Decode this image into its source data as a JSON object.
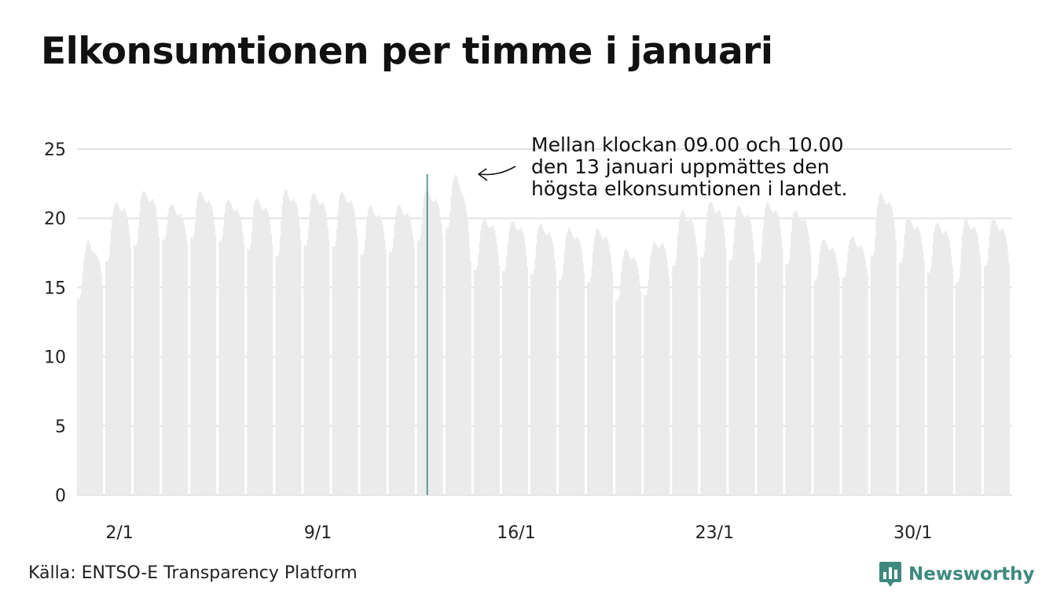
{
  "title": "Elkonsumtionen per timme i januari",
  "source": "Källa: ENTSO-E Transparency Platform",
  "brand": {
    "name": "Newsworthy",
    "icon": "bar-chart-speech-bubble-icon",
    "color": "#3e8a7e"
  },
  "annotation": {
    "lines": [
      "Mellan klockan 09.00 och 10.00",
      "den 13 januari uppmättes den",
      "högsta elkonsumtionen i landet."
    ],
    "arrow_icon": "curved-arrow-left-icon"
  },
  "chart_data": {
    "type": "bar",
    "title": "Elkonsumtionen per timme i januari",
    "xlabel": "",
    "ylabel": "",
    "ylim": [
      0,
      25
    ],
    "yticks": [
      "0",
      "5",
      "10",
      "15",
      "20",
      "25"
    ],
    "xticks": [
      {
        "day": 2,
        "label": "2/1"
      },
      {
        "day": 9,
        "label": "9/1"
      },
      {
        "day": 16,
        "label": "16/1"
      },
      {
        "day": 23,
        "label": "23/1"
      },
      {
        "day": 30,
        "label": "30/1"
      }
    ],
    "grid": true,
    "bar_color": "#ebebeb",
    "highlight_color": "#3e8a7e",
    "highlight": {
      "day": 13,
      "hour": 9,
      "value": 23.2
    },
    "series": [
      {
        "values": [
          [
            14.2,
            14.1,
            14.2,
            14.5,
            15.3,
            16.2,
            17.0,
            17.5,
            17.9,
            18.3,
            18.4,
            18.2,
            18.0,
            17.7,
            17.6,
            17.5,
            17.5,
            17.4,
            17.3,
            17.1,
            16.9,
            16.6,
            16.0,
            15.2
          ],
          [
            16.9,
            16.8,
            16.9,
            17.2,
            18.1,
            19.2,
            20.1,
            20.5,
            20.9,
            21.1,
            21.2,
            21.0,
            20.8,
            20.6,
            20.5,
            20.5,
            20.6,
            20.7,
            20.5,
            20.3,
            20.0,
            19.5,
            18.8,
            17.9
          ],
          [
            18.1,
            18.0,
            18.1,
            18.4,
            19.3,
            20.4,
            21.3,
            21.7,
            21.9,
            22.0,
            21.9,
            21.7,
            21.5,
            21.3,
            21.2,
            21.2,
            21.3,
            21.4,
            21.2,
            21.0,
            20.7,
            20.2,
            19.5,
            18.6
          ],
          [
            18.5,
            18.4,
            18.5,
            18.8,
            19.5,
            20.3,
            20.7,
            20.9,
            21.0,
            21.0,
            20.9,
            20.7,
            20.5,
            20.3,
            20.2,
            20.2,
            20.3,
            20.3,
            20.1,
            19.9,
            19.6,
            19.2,
            18.8,
            18.2
          ],
          [
            18.6,
            18.5,
            18.6,
            18.9,
            19.7,
            20.7,
            21.5,
            21.8,
            21.9,
            21.9,
            21.8,
            21.6,
            21.4,
            21.2,
            21.1,
            21.1,
            21.2,
            21.3,
            21.1,
            20.9,
            20.6,
            20.1,
            19.5,
            18.8
          ],
          [
            18.4,
            18.3,
            18.4,
            18.7,
            19.4,
            20.3,
            21.0,
            21.2,
            21.3,
            21.3,
            21.2,
            21.0,
            20.8,
            20.6,
            20.5,
            20.5,
            20.6,
            20.6,
            20.4,
            20.2,
            19.9,
            19.5,
            18.9,
            18.1
          ],
          [
            17.8,
            17.7,
            17.8,
            18.1,
            19.0,
            20.1,
            21.0,
            21.3,
            21.4,
            21.4,
            21.3,
            21.1,
            20.9,
            20.7,
            20.6,
            20.6,
            20.7,
            20.8,
            20.6,
            20.4,
            20.1,
            19.6,
            18.9,
            18.1
          ],
          [
            17.3,
            17.2,
            17.3,
            17.6,
            18.6,
            19.9,
            21.0,
            21.6,
            22.0,
            22.1,
            22.0,
            21.7,
            21.5,
            21.3,
            21.2,
            21.2,
            21.3,
            21.4,
            21.2,
            21.0,
            20.7,
            20.2,
            19.4,
            18.5
          ],
          [
            18.1,
            18.0,
            18.1,
            18.4,
            19.3,
            20.4,
            21.3,
            21.6,
            21.8,
            21.8,
            21.7,
            21.5,
            21.3,
            21.1,
            21.0,
            21.0,
            21.1,
            21.2,
            21.0,
            20.8,
            20.5,
            20.0,
            19.3,
            18.5
          ],
          [
            18.0,
            17.9,
            18.0,
            18.3,
            19.2,
            20.4,
            21.3,
            21.7,
            21.9,
            21.9,
            21.8,
            21.6,
            21.4,
            21.2,
            21.1,
            21.1,
            21.2,
            21.3,
            21.1,
            20.9,
            20.6,
            20.1,
            19.4,
            18.6
          ],
          [
            17.4,
            17.3,
            17.4,
            17.7,
            18.5,
            19.5,
            20.2,
            20.6,
            20.8,
            20.9,
            20.8,
            20.6,
            20.4,
            20.2,
            20.1,
            20.1,
            20.2,
            20.3,
            20.1,
            19.9,
            19.6,
            19.1,
            18.5,
            17.8
          ],
          [
            17.6,
            17.5,
            17.6,
            17.9,
            18.6,
            19.5,
            20.2,
            20.6,
            20.9,
            21.0,
            20.9,
            20.7,
            20.5,
            20.3,
            20.2,
            20.2,
            20.3,
            20.4,
            20.2,
            20.0,
            19.7,
            19.2,
            18.6,
            17.9
          ],
          [
            18.4,
            18.3,
            18.4,
            18.7,
            19.6,
            20.8,
            21.6,
            21.9,
            22.0,
            22.0,
            21.9,
            21.7,
            21.5,
            21.3,
            21.2,
            21.2,
            21.3,
            21.4,
            21.2,
            21.0,
            20.7,
            20.2,
            19.6,
            18.9
          ],
          [
            19.3,
            19.2,
            19.3,
            19.6,
            20.5,
            21.6,
            22.4,
            22.8,
            23.0,
            23.2,
            23.0,
            22.7,
            22.4,
            22.1,
            21.9,
            21.7,
            21.6,
            21.4,
            21.0,
            20.5,
            19.9,
            19.0,
            17.9,
            16.8
          ],
          [
            16.3,
            16.2,
            16.3,
            16.6,
            17.4,
            18.3,
            19.1,
            19.5,
            19.8,
            20.0,
            19.9,
            19.7,
            19.5,
            19.4,
            19.3,
            19.3,
            19.4,
            19.5,
            19.3,
            19.1,
            18.7,
            18.1,
            17.4,
            16.6
          ],
          [
            16.2,
            16.1,
            16.2,
            16.5,
            17.3,
            18.2,
            19.0,
            19.4,
            19.7,
            19.8,
            19.7,
            19.5,
            19.3,
            19.2,
            19.1,
            19.1,
            19.2,
            19.3,
            19.1,
            18.9,
            18.6,
            18.0,
            17.3,
            16.5
          ],
          [
            16.0,
            15.9,
            16.0,
            16.3,
            17.1,
            18.1,
            18.9,
            19.3,
            19.5,
            19.6,
            19.5,
            19.3,
            19.1,
            18.9,
            18.8,
            18.8,
            18.9,
            19.0,
            18.8,
            18.6,
            18.3,
            17.8,
            17.1,
            16.3
          ],
          [
            15.6,
            15.5,
            15.6,
            15.9,
            16.7,
            17.7,
            18.5,
            18.9,
            19.1,
            19.3,
            19.2,
            19.0,
            18.8,
            18.6,
            18.5,
            18.5,
            18.6,
            18.7,
            18.5,
            18.3,
            18.0,
            17.5,
            16.8,
            16.1
          ],
          [
            15.4,
            15.3,
            15.4,
            15.7,
            16.5,
            17.5,
            18.3,
            18.8,
            19.1,
            19.3,
            19.2,
            19.0,
            18.8,
            18.6,
            18.5,
            18.5,
            18.6,
            18.7,
            18.5,
            18.3,
            18.0,
            17.5,
            16.8,
            16.1
          ],
          [
            14.1,
            14.0,
            14.1,
            14.4,
            15.2,
            16.2,
            16.9,
            17.3,
            17.6,
            17.8,
            17.7,
            17.5,
            17.3,
            17.1,
            17.0,
            17.0,
            17.1,
            17.2,
            17.0,
            16.8,
            16.5,
            16.0,
            15.4,
            14.7
          ],
          [
            14.5,
            14.4,
            14.5,
            14.8,
            15.6,
            16.5,
            17.3,
            17.7,
            18.0,
            18.3,
            18.2,
            18.1,
            18.0,
            17.9,
            17.9,
            18.0,
            18.1,
            18.2,
            18.0,
            17.8,
            17.5,
            17.0,
            16.4,
            15.7
          ],
          [
            16.6,
            16.5,
            16.6,
            16.9,
            17.8,
            18.9,
            19.8,
            20.2,
            20.4,
            20.6,
            20.5,
            20.3,
            20.1,
            19.9,
            19.8,
            19.8,
            19.9,
            20.0,
            19.8,
            19.6,
            19.3,
            18.8,
            18.1,
            17.3
          ],
          [
            17.2,
            17.1,
            17.2,
            17.5,
            18.4,
            19.6,
            20.5,
            20.9,
            21.1,
            21.2,
            21.1,
            20.9,
            20.7,
            20.5,
            20.4,
            20.4,
            20.5,
            20.6,
            20.4,
            20.2,
            19.9,
            19.4,
            18.7,
            17.9
          ],
          [
            17.0,
            16.9,
            17.0,
            17.3,
            18.2,
            19.3,
            20.2,
            20.6,
            20.8,
            20.9,
            20.8,
            20.6,
            20.4,
            20.2,
            20.1,
            20.1,
            20.2,
            20.3,
            20.1,
            19.9,
            19.6,
            19.1,
            18.4,
            17.6
          ],
          [
            16.8,
            16.7,
            16.8,
            17.1,
            18.0,
            19.2,
            20.2,
            20.7,
            21.0,
            21.2,
            21.1,
            20.9,
            20.7,
            20.5,
            20.4,
            20.4,
            20.5,
            20.6,
            20.4,
            20.2,
            19.9,
            19.3,
            18.6,
            17.8
          ],
          [
            16.7,
            16.6,
            16.7,
            17.0,
            17.9,
            19.0,
            19.9,
            20.3,
            20.5,
            20.6,
            20.5,
            20.3,
            20.1,
            19.9,
            19.8,
            19.8,
            19.9,
            20.0,
            19.8,
            19.6,
            19.3,
            18.8,
            18.1,
            17.4
          ],
          [
            15.6,
            15.5,
            15.6,
            15.9,
            16.6,
            17.4,
            18.0,
            18.3,
            18.4,
            18.5,
            18.4,
            18.2,
            18.0,
            17.8,
            17.7,
            17.7,
            17.8,
            17.9,
            17.7,
            17.5,
            17.2,
            16.8,
            16.3,
            15.7
          ],
          [
            15.8,
            15.7,
            15.8,
            16.1,
            16.8,
            17.6,
            18.1,
            18.4,
            18.6,
            18.7,
            18.6,
            18.4,
            18.2,
            18.0,
            17.9,
            17.9,
            18.0,
            18.1,
            17.9,
            17.7,
            17.4,
            17.0,
            16.5,
            16.0
          ],
          [
            17.3,
            17.2,
            17.3,
            17.6,
            18.6,
            19.9,
            20.9,
            21.4,
            21.7,
            21.8,
            21.7,
            21.5,
            21.3,
            21.1,
            21.0,
            21.0,
            21.1,
            21.2,
            21.0,
            20.8,
            20.5,
            20.0,
            19.3,
            18.5
          ],
          [
            16.8,
            16.7,
            16.8,
            17.1,
            17.9,
            18.9,
            19.6,
            19.9,
            20.0,
            20.0,
            19.9,
            19.7,
            19.5,
            19.3,
            19.2,
            19.2,
            19.3,
            19.4,
            19.2,
            19.0,
            18.7,
            18.2,
            17.6,
            16.9
          ],
          [
            16.1,
            16.0,
            16.1,
            16.4,
            17.2,
            18.2,
            19.0,
            19.4,
            19.6,
            19.7,
            19.6,
            19.4,
            19.2,
            19.0,
            18.9,
            18.9,
            19.0,
            19.1,
            18.9,
            18.7,
            18.4,
            17.9,
            17.2,
            16.5
          ],
          [
            15.4,
            15.3,
            15.4,
            15.7,
            16.6,
            17.8,
            18.8,
            19.4,
            19.8,
            20.0,
            19.9,
            19.7,
            19.5,
            19.3,
            19.2,
            19.2,
            19.3,
            19.4,
            19.2,
            19.0,
            18.7,
            18.2,
            17.5,
            16.8
          ],
          [
            16.6,
            16.5,
            16.6,
            16.9,
            17.8,
            18.8,
            19.5,
            19.8,
            19.9,
            19.9,
            19.8,
            19.6,
            19.4,
            19.2,
            19.1,
            19.1,
            19.2,
            19.3,
            19.1,
            18.9,
            18.6,
            18.1,
            17.5,
            16.8
          ]
        ]
      }
    ]
  }
}
